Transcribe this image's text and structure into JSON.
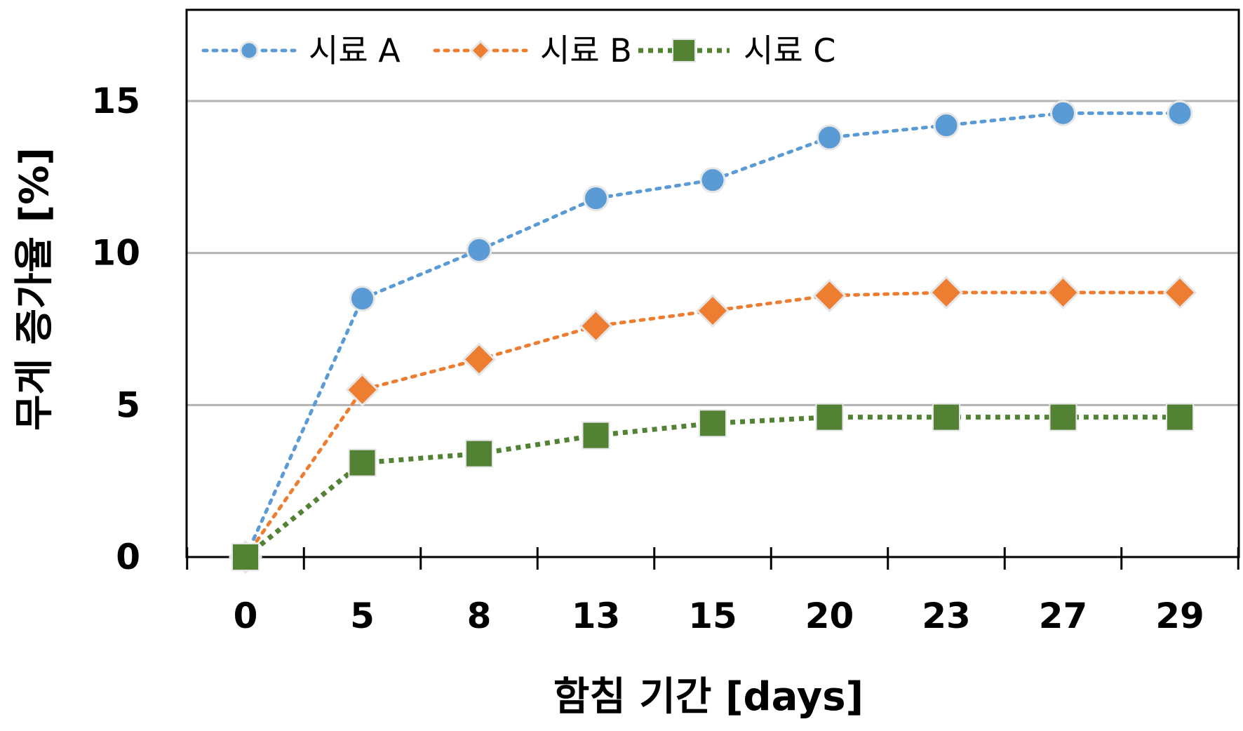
{
  "chart_data": {
    "type": "line",
    "categories": [
      "0",
      "5",
      "8",
      "13",
      "15",
      "20",
      "23",
      "27",
      "29"
    ],
    "xlabel": "함침 기간 [days]",
    "ylabel": "무게 증가율 [%]",
    "ylim": [
      0,
      15
    ],
    "yticks": [
      "0",
      "5",
      "10",
      "15"
    ],
    "grid": "horizontal",
    "legend_position": "top-left",
    "series": [
      {
        "name": "시료 A",
        "values": [
          0,
          8.5,
          10.1,
          11.8,
          12.4,
          13.8,
          14.2,
          14.6,
          14.6
        ],
        "color": "#5B9BD5",
        "marker": "circle",
        "line": "dotted"
      },
      {
        "name": "시료 B",
        "values": [
          0,
          5.5,
          6.5,
          7.6,
          8.1,
          8.6,
          8.7,
          8.7,
          8.7
        ],
        "color": "#ED7D31",
        "marker": "diamond",
        "line": "dotted"
      },
      {
        "name": "시료 C",
        "values": [
          0,
          3.1,
          3.4,
          4.0,
          4.4,
          4.6,
          4.6,
          4.6,
          4.6
        ],
        "color": "#548235",
        "marker": "square",
        "line": "dotted-thick"
      }
    ]
  }
}
